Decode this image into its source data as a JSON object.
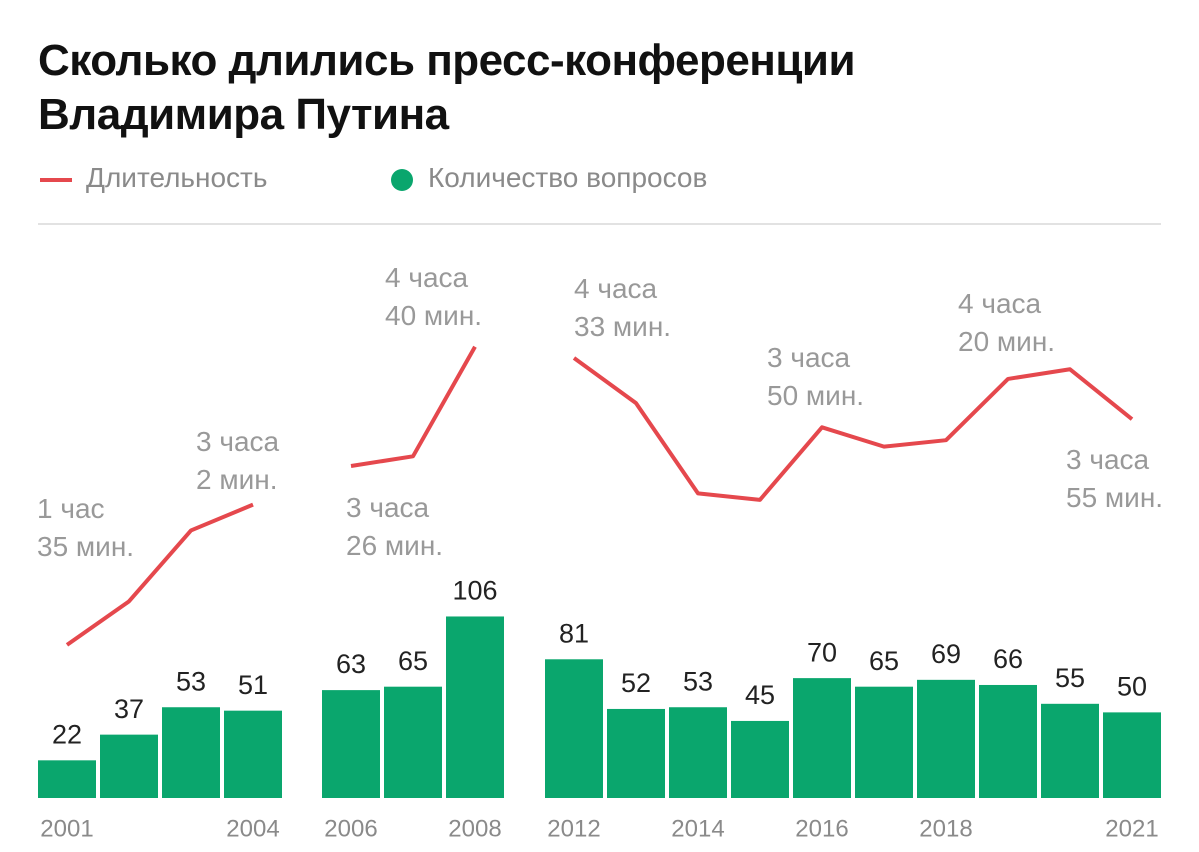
{
  "title": "Сколько длились пресс-конференции\nВладимира Путина",
  "chart_data": [
    {
      "type": "bar",
      "categories": [
        "2001",
        null,
        null,
        "2004"
      ],
      "ylim": [
        0,
        320
      ],
      "y2lim": [
        0,
        340
      ],
      "series": [
        {
          "name": "Количество вопросов",
          "color": "#0aa66d",
          "values": [
            22,
            37,
            53,
            51
          ]
        },
        {
          "name": "Длительность",
          "type": "line",
          "axis": "y2",
          "color": "#e5484d",
          "values": [
            95,
            122,
            166,
            182
          ],
          "value_labels": [
            "1 час\n35 мин.",
            null,
            null,
            "3 часа\n2 мин."
          ]
        }
      ]
    },
    {
      "type": "bar",
      "categories": [
        "2006",
        null,
        "2008"
      ],
      "ylim": [
        0,
        320
      ],
      "y2lim": [
        0,
        340
      ],
      "series": [
        {
          "color": "#0aa66d",
          "values": [
            63,
            65,
            106
          ]
        },
        {
          "type": "line",
          "axis": "y2",
          "color": "#e5484d",
          "values": [
            206,
            212,
            280
          ],
          "value_labels": [
            "3 часа\n26 мин.",
            null,
            "4 часа\n40 мин."
          ]
        }
      ]
    },
    {
      "type": "bar",
      "categories": [
        "2012",
        null,
        "2014",
        null,
        "2016",
        null,
        "2018",
        null,
        null,
        "2021"
      ],
      "ylim": [
        0,
        320
      ],
      "y2lim": [
        0,
        340
      ],
      "series": [
        {
          "color": "#0aa66d",
          "values": [
            81,
            52,
            53,
            45,
            70,
            65,
            69,
            66,
            55,
            50
          ]
        },
        {
          "type": "line",
          "axis": "y2",
          "color": "#e5484d",
          "values": [
            273,
            245,
            189,
            185,
            230,
            218,
            222,
            260,
            266,
            235
          ],
          "value_labels": [
            "4 часа\n33 мин.",
            null,
            null,
            null,
            "3 часа\n50 мин.",
            null,
            null,
            "4 часа\n20 мин.",
            null,
            "3 часа\n55 мин."
          ]
        }
      ]
    }
  ]
}
